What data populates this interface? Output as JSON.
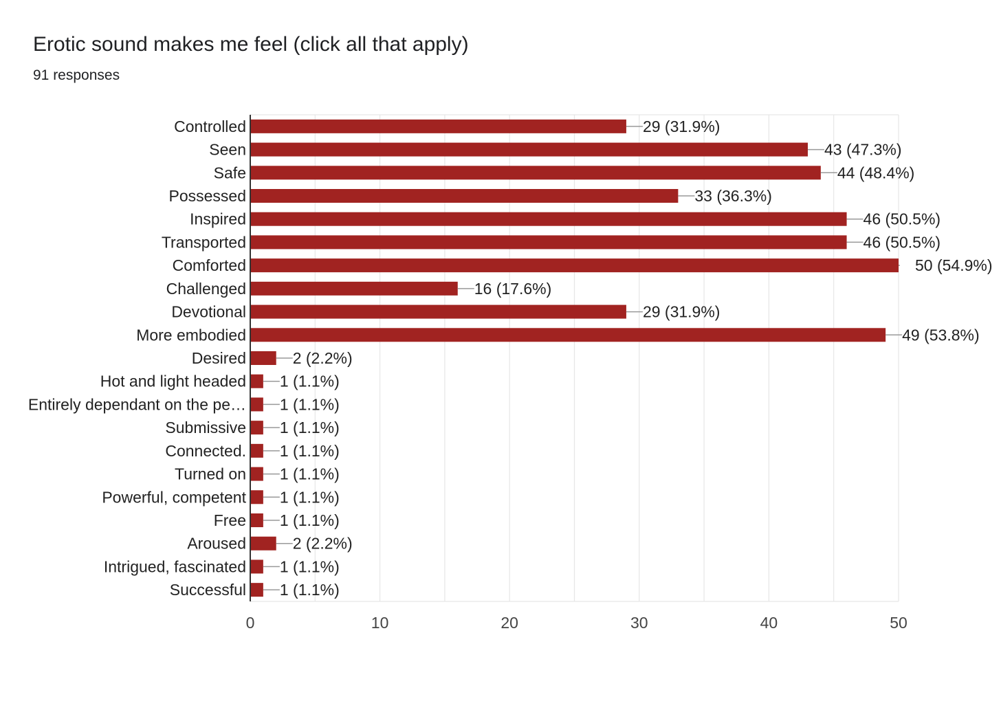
{
  "question": {
    "title": "Erotic sound makes me feel  (click all that apply)",
    "responses": "91 responses"
  },
  "colors": {
    "bar": "#a12321",
    "grid": "#e6e6e6",
    "axis": "#333333",
    "leader": "#999999"
  },
  "chart_data": {
    "type": "bar",
    "orientation": "horizontal",
    "categories": [
      "Controlled",
      "Seen",
      "Safe",
      "Possessed",
      "Inspired",
      "Transported",
      "Comforted",
      "Challenged",
      "Devotional",
      "More embodied",
      "Desired",
      "Hot and light headed",
      "Entirely dependant on the pe…",
      "Submissive",
      "Connected.",
      "Turned on",
      "Powerful, competent",
      "Free",
      "Aroused",
      "Intrigued, fascinated",
      "Successful"
    ],
    "values": [
      29,
      43,
      44,
      33,
      46,
      46,
      50,
      16,
      29,
      49,
      2,
      1,
      1,
      1,
      1,
      1,
      1,
      1,
      2,
      1,
      1
    ],
    "data_labels": [
      "29 (31.9%)",
      "43 (47.3%)",
      "44 (48.4%)",
      "33 (36.3%)",
      "46 (50.5%)",
      "46 (50.5%)",
      "50 (54.9%)",
      "16 (17.6%)",
      "29 (31.9%)",
      "49 (53.8%)",
      "2 (2.2%)",
      "1 (1.1%)",
      "1 (1.1%)",
      "1 (1.1%)",
      "1 (1.1%)",
      "1 (1.1%)",
      "1 (1.1%)",
      "1 (1.1%)",
      "2 (2.2%)",
      "1 (1.1%)",
      "1 (1.1%)"
    ],
    "xticks": [
      "0",
      "10",
      "20",
      "30",
      "40",
      "50"
    ],
    "xlim": [
      0,
      50
    ],
    "grid": true,
    "title": "Erotic sound makes me feel  (click all that apply)",
    "xlabel": "",
    "ylabel": ""
  }
}
